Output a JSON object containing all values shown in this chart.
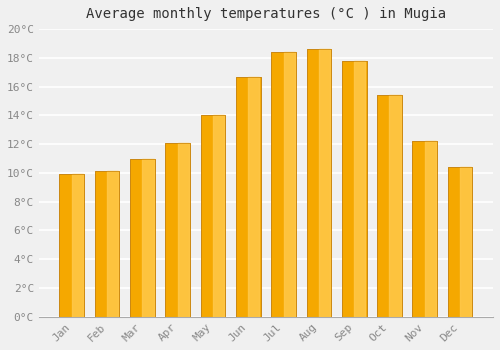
{
  "title": "Average monthly temperatures (°C ) in Mugia",
  "months": [
    "Jan",
    "Feb",
    "Mar",
    "Apr",
    "May",
    "Jun",
    "Jul",
    "Aug",
    "Sep",
    "Oct",
    "Nov",
    "Dec"
  ],
  "values": [
    9.9,
    10.1,
    11.0,
    12.1,
    14.0,
    16.7,
    18.4,
    18.6,
    17.8,
    15.4,
    12.2,
    10.4
  ],
  "bar_color_main": "#F5A800",
  "bar_color_light": "#FFC84A",
  "bar_edge_color": "#C8830A",
  "ylim": [
    0,
    20
  ],
  "yticks": [
    0,
    2,
    4,
    6,
    8,
    10,
    12,
    14,
    16,
    18,
    20
  ],
  "ytick_labels": [
    "0°C",
    "2°C",
    "4°C",
    "6°C",
    "8°C",
    "10°C",
    "12°C",
    "14°C",
    "16°C",
    "18°C",
    "20°C"
  ],
  "background_color": "#f0f0f0",
  "grid_color": "#ffffff",
  "title_fontsize": 10,
  "tick_fontsize": 8,
  "font_family": "monospace",
  "label_color": "#888888"
}
